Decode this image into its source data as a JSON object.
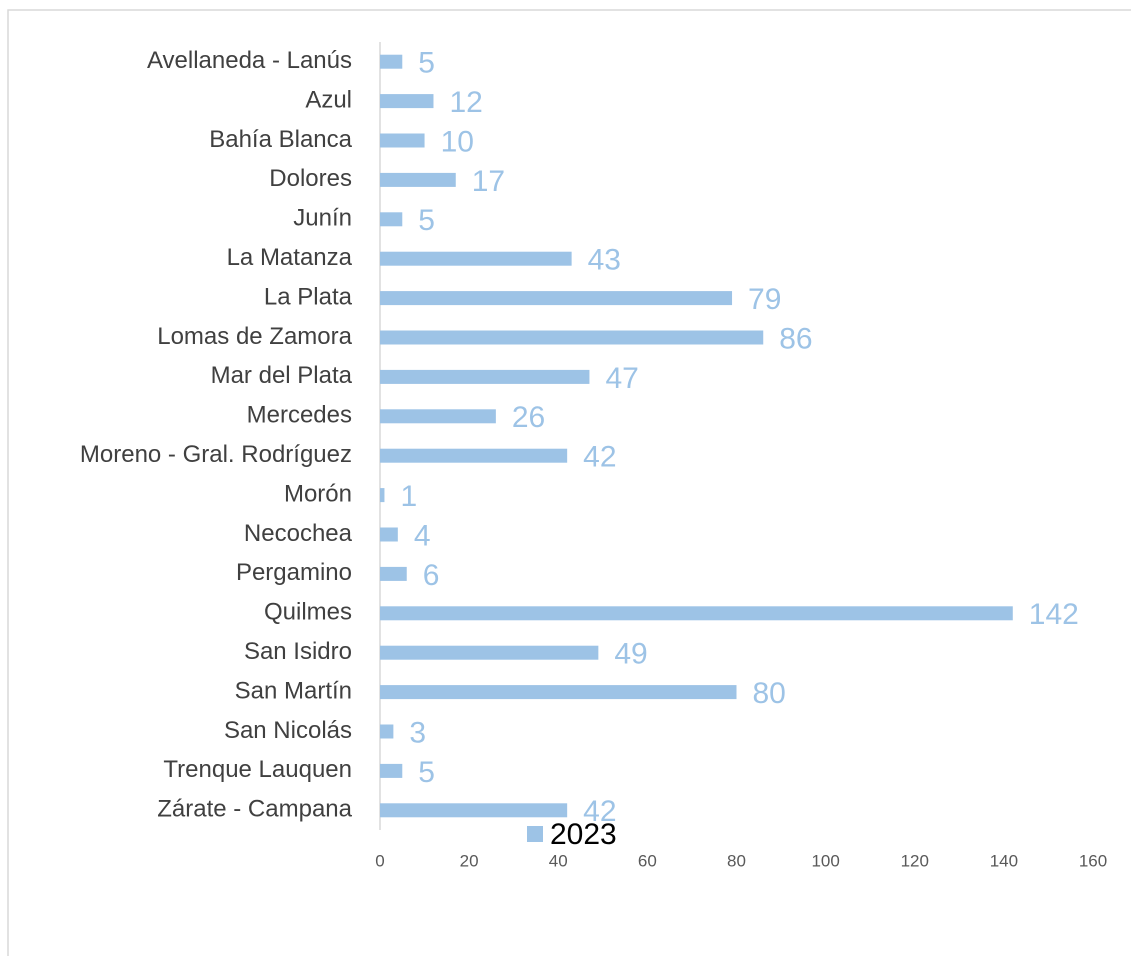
{
  "chart_data": {
    "type": "bar",
    "orientation": "horizontal",
    "categories": [
      "Avellaneda - Lanús",
      "Azul",
      "Bahía Blanca",
      "Dolores",
      "Junín",
      "La Matanza",
      "La Plata",
      "Lomas de Zamora",
      "Mar del Plata",
      "Mercedes",
      "Moreno - Gral. Rodríguez",
      "Morón",
      "Necochea",
      "Pergamino",
      "Quilmes",
      "San Isidro",
      "San Martín",
      "San Nicolás",
      "Trenque Lauquen",
      "Zárate - Campana"
    ],
    "series": [
      {
        "name": "2023",
        "color": "#9dc3e6",
        "values": [
          5,
          12,
          10,
          17,
          5,
          43,
          79,
          86,
          47,
          26,
          42,
          1,
          4,
          6,
          142,
          49,
          80,
          3,
          5,
          42
        ]
      }
    ],
    "xlim": [
      0,
      160
    ],
    "xticks": [
      0,
      20,
      40,
      60,
      80,
      100,
      120,
      140,
      160
    ],
    "grid": false,
    "legend": "bottom"
  }
}
